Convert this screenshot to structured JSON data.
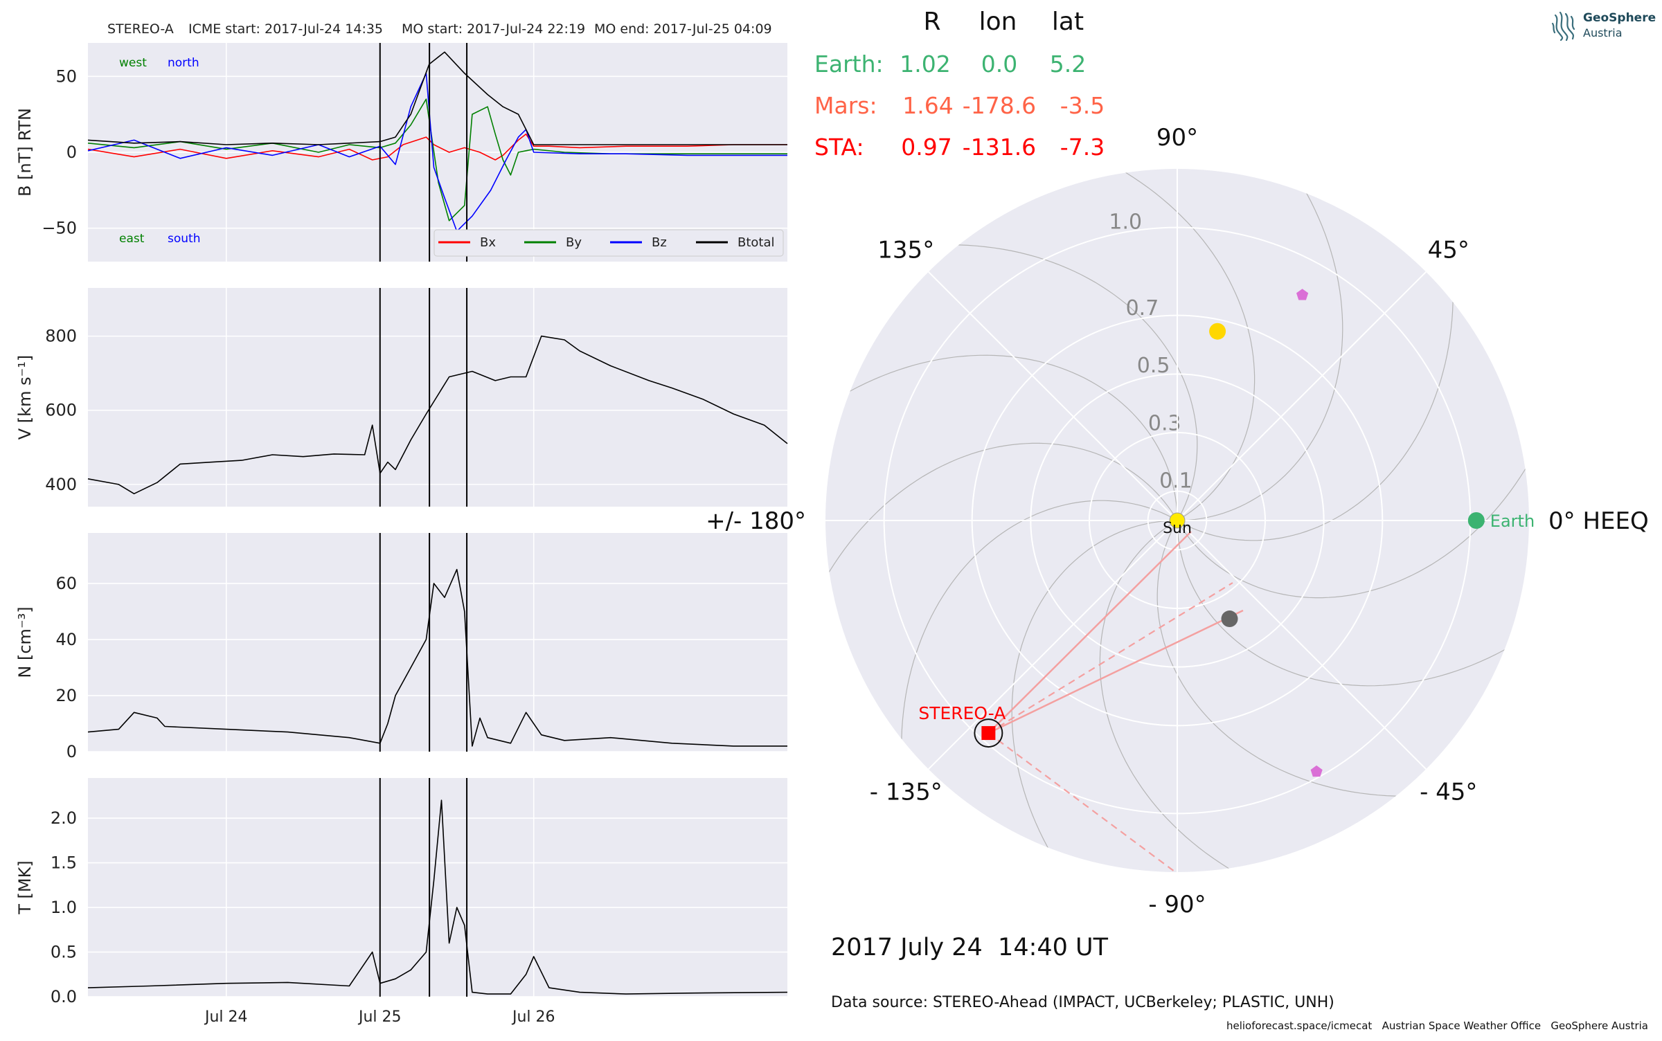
{
  "header": {
    "spacecraft": "STEREO-A",
    "icme_start": "ICME start: 2017-Jul-24 14:35",
    "mo_start": "MO start: 2017-Jul-24 22:19",
    "mo_end": "MO end: 2017-Jul-25 04:09"
  },
  "logo": {
    "name_line1": "GeoSphere",
    "name_line2": "Austria"
  },
  "table": {
    "headers": [
      "R",
      "lon",
      "lat"
    ],
    "rows": [
      {
        "label": "Earth:",
        "R": "1.02",
        "lon": "0.0",
        "lat": "5.2",
        "color": "#3cb371"
      },
      {
        "label": "Mars:",
        "R": "1.64",
        "lon": "-178.6",
        "lat": "-3.5",
        "color": "#ff6347"
      },
      {
        "label": "STA:",
        "R": "0.97",
        "lon": "-131.6",
        "lat": "-7.3",
        "color": "#ff0000"
      }
    ]
  },
  "date_label": "2017 July 24  14:40 UT",
  "data_source": "Data source: STEREO-Ahead (IMPACT, UCBerkeley; PLASTIC, UNH)",
  "footer": "helioforecast.space/icmecat   Austrian Space Weather Office   GeoSphere Austria",
  "chart_data": [
    {
      "type": "line",
      "panel": "magnetic-field",
      "ylabel": "B [nT] RTN",
      "ylim": [
        -72,
        72
      ],
      "yticks": [
        50,
        0,
        -50
      ],
      "ytick_labels": [
        "50",
        "0",
        "−50"
      ],
      "x_range_days": [
        -1.9,
        2.65
      ],
      "xticks": [
        "Jul 24",
        "Jul 25",
        "Jul 26"
      ],
      "annotations": {
        "west": "west",
        "north": "north",
        "east": "east",
        "south": "south"
      },
      "legend": "lower-right",
      "series": [
        {
          "name": "Bx",
          "color": "#ff0000",
          "points": [
            [
              -1.9,
              2
            ],
            [
              -1.6,
              -3
            ],
            [
              -1.3,
              2
            ],
            [
              -1.0,
              -4
            ],
            [
              -0.7,
              1
            ],
            [
              -0.4,
              -3
            ],
            [
              -0.2,
              2
            ],
            [
              -0.05,
              -5
            ],
            [
              0.05,
              -3
            ],
            [
              0.15,
              5
            ],
            [
              0.3,
              10
            ],
            [
              0.35,
              5
            ],
            [
              0.45,
              0
            ],
            [
              0.55,
              3
            ],
            [
              0.65,
              0
            ],
            [
              0.75,
              -5
            ],
            [
              0.8,
              -2
            ],
            [
              0.9,
              8
            ],
            [
              0.95,
              12
            ],
            [
              1.0,
              4
            ],
            [
              1.1,
              4
            ],
            [
              1.3,
              3
            ],
            [
              1.6,
              4
            ],
            [
              2.0,
              4
            ],
            [
              2.3,
              5
            ],
            [
              2.65,
              5
            ]
          ]
        },
        {
          "name": "By",
          "color": "#008000",
          "points": [
            [
              -1.9,
              6
            ],
            [
              -1.6,
              3
            ],
            [
              -1.3,
              7
            ],
            [
              -1.0,
              2
            ],
            [
              -0.7,
              6
            ],
            [
              -0.4,
              0
            ],
            [
              -0.2,
              5
            ],
            [
              0.0,
              3
            ],
            [
              0.1,
              6
            ],
            [
              0.2,
              18
            ],
            [
              0.3,
              35
            ],
            [
              0.38,
              -20
            ],
            [
              0.45,
              -45
            ],
            [
              0.55,
              -35
            ],
            [
              0.6,
              25
            ],
            [
              0.7,
              30
            ],
            [
              0.75,
              12
            ],
            [
              0.8,
              -5
            ],
            [
              0.85,
              -15
            ],
            [
              0.9,
              0
            ],
            [
              1.0,
              2
            ],
            [
              1.2,
              0
            ],
            [
              1.5,
              -1
            ],
            [
              1.9,
              -1
            ],
            [
              2.3,
              -1
            ],
            [
              2.65,
              -1
            ]
          ]
        },
        {
          "name": "Bz",
          "color": "#0000ff",
          "points": [
            [
              -1.9,
              1
            ],
            [
              -1.6,
              8
            ],
            [
              -1.3,
              -4
            ],
            [
              -1.0,
              3
            ],
            [
              -0.7,
              -2
            ],
            [
              -0.4,
              5
            ],
            [
              -0.2,
              -3
            ],
            [
              0.0,
              4
            ],
            [
              0.1,
              -8
            ],
            [
              0.2,
              30
            ],
            [
              0.3,
              52
            ],
            [
              0.35,
              -10
            ],
            [
              0.42,
              -30
            ],
            [
              0.5,
              -52
            ],
            [
              0.6,
              -42
            ],
            [
              0.72,
              -25
            ],
            [
              0.82,
              -5
            ],
            [
              0.9,
              10
            ],
            [
              0.95,
              15
            ],
            [
              1.0,
              0
            ],
            [
              1.3,
              -1
            ],
            [
              1.6,
              -1
            ],
            [
              2.0,
              -2
            ],
            [
              2.65,
              -2
            ]
          ]
        },
        {
          "name": "Btotal",
          "color": "#000000",
          "points": [
            [
              -1.9,
              8
            ],
            [
              -1.6,
              6
            ],
            [
              -1.3,
              7
            ],
            [
              -1.0,
              5
            ],
            [
              -0.7,
              6
            ],
            [
              -0.4,
              5
            ],
            [
              -0.2,
              6
            ],
            [
              0.0,
              7
            ],
            [
              0.1,
              10
            ],
            [
              0.2,
              25
            ],
            [
              0.32,
              58
            ],
            [
              0.42,
              66
            ],
            [
              0.55,
              52
            ],
            [
              0.7,
              38
            ],
            [
              0.8,
              30
            ],
            [
              0.9,
              25
            ],
            [
              1.0,
              5
            ],
            [
              1.3,
              5
            ],
            [
              1.6,
              5
            ],
            [
              2.0,
              5
            ],
            [
              2.65,
              5
            ]
          ]
        }
      ]
    },
    {
      "type": "line",
      "panel": "speed",
      "ylabel": "V [km s⁻¹]",
      "ylim": [
        340,
        930
      ],
      "yticks": [
        800,
        600,
        400
      ],
      "ytick_labels": [
        "800",
        "600",
        "400"
      ],
      "x_range_days": [
        -1.9,
        2.65
      ],
      "xticks": [
        "Jul 24",
        "Jul 25",
        "Jul 26"
      ],
      "series": [
        {
          "name": "",
          "color": "#000000",
          "points": [
            [
              -1.9,
              415
            ],
            [
              -1.7,
              400
            ],
            [
              -1.6,
              375
            ],
            [
              -1.45,
              405
            ],
            [
              -1.3,
              455
            ],
            [
              -1.1,
              460
            ],
            [
              -0.9,
              465
            ],
            [
              -0.7,
              480
            ],
            [
              -0.5,
              475
            ],
            [
              -0.3,
              482
            ],
            [
              -0.1,
              480
            ],
            [
              -0.05,
              560
            ],
            [
              0.0,
              430
            ],
            [
              0.05,
              460
            ],
            [
              0.1,
              440
            ],
            [
              0.2,
              520
            ],
            [
              0.3,
              590
            ],
            [
              0.45,
              690
            ],
            [
              0.6,
              705
            ],
            [
              0.75,
              680
            ],
            [
              0.85,
              690
            ],
            [
              0.95,
              690
            ],
            [
              1.05,
              800
            ],
            [
              1.2,
              790
            ],
            [
              1.3,
              760
            ],
            [
              1.5,
              720
            ],
            [
              1.75,
              680
            ],
            [
              1.9,
              660
            ],
            [
              2.1,
              630
            ],
            [
              2.3,
              590
            ],
            [
              2.5,
              560
            ],
            [
              2.65,
              510
            ]
          ]
        }
      ]
    },
    {
      "type": "line",
      "panel": "density",
      "ylabel": "N [cm⁻³]",
      "ylim": [
        0,
        78
      ],
      "yticks": [
        60,
        40,
        20,
        0
      ],
      "ytick_labels": [
        "60",
        "40",
        "20",
        "0"
      ],
      "x_range_days": [
        -1.9,
        2.65
      ],
      "xticks": [
        "Jul 24",
        "Jul 25",
        "Jul 26"
      ],
      "series": [
        {
          "name": "",
          "color": "#000000",
          "points": [
            [
              -1.9,
              7
            ],
            [
              -1.7,
              8
            ],
            [
              -1.6,
              14
            ],
            [
              -1.45,
              12
            ],
            [
              -1.4,
              9
            ],
            [
              -1.0,
              8
            ],
            [
              -0.6,
              7
            ],
            [
              -0.2,
              5
            ],
            [
              0.0,
              3
            ],
            [
              0.05,
              10
            ],
            [
              0.1,
              20
            ],
            [
              0.2,
              30
            ],
            [
              0.3,
              40
            ],
            [
              0.35,
              60
            ],
            [
              0.42,
              55
            ],
            [
              0.5,
              65
            ],
            [
              0.55,
              50
            ],
            [
              0.6,
              2
            ],
            [
              0.65,
              12
            ],
            [
              0.7,
              5
            ],
            [
              0.85,
              3
            ],
            [
              0.95,
              14
            ],
            [
              1.05,
              6
            ],
            [
              1.2,
              4
            ],
            [
              1.5,
              5
            ],
            [
              1.9,
              3
            ],
            [
              2.3,
              2
            ],
            [
              2.65,
              2
            ]
          ]
        }
      ]
    },
    {
      "type": "line",
      "panel": "temperature",
      "ylabel": "T [MK]",
      "ylim": [
        0,
        2.45
      ],
      "yticks": [
        2.0,
        1.5,
        1.0,
        0.5,
        0.0
      ],
      "ytick_labels": [
        "2.0",
        "1.5",
        "1.0",
        "0.5",
        "0.0"
      ],
      "x_range_days": [
        -1.9,
        2.65
      ],
      "xticks": [
        "Jul 24",
        "Jul 25",
        "Jul 26"
      ],
      "series": [
        {
          "name": "",
          "color": "#000000",
          "points": [
            [
              -1.9,
              0.1
            ],
            [
              -1.5,
              0.12
            ],
            [
              -1.0,
              0.15
            ],
            [
              -0.6,
              0.16
            ],
            [
              -0.2,
              0.12
            ],
            [
              -0.05,
              0.5
            ],
            [
              0.0,
              0.15
            ],
            [
              0.1,
              0.2
            ],
            [
              0.2,
              0.3
            ],
            [
              0.3,
              0.5
            ],
            [
              0.35,
              1.3
            ],
            [
              0.4,
              2.2
            ],
            [
              0.45,
              0.6
            ],
            [
              0.5,
              1.0
            ],
            [
              0.55,
              0.8
            ],
            [
              0.6,
              0.05
            ],
            [
              0.7,
              0.03
            ],
            [
              0.85,
              0.03
            ],
            [
              0.95,
              0.25
            ],
            [
              1.0,
              0.45
            ],
            [
              1.1,
              0.1
            ],
            [
              1.3,
              0.05
            ],
            [
              1.6,
              0.03
            ],
            [
              2.0,
              0.04
            ],
            [
              2.65,
              0.05
            ]
          ]
        }
      ]
    },
    {
      "type": "scatter",
      "panel": "polar-heeq",
      "projection": "polar",
      "radial_tick_labels": [
        "0.1",
        "0.3",
        "0.5",
        "0.7",
        "1.0"
      ],
      "radial_ticks": [
        0.1,
        0.3,
        0.5,
        0.7,
        1.0
      ],
      "r_max": 1.2,
      "angle_labels": [
        "0° HEEQ",
        "45°",
        "90°",
        "135°",
        "+/- 180°",
        "- 135°",
        "- 90°",
        "- 45°"
      ],
      "bodies": [
        {
          "name": "Sun",
          "r": 0.0,
          "lon": 0,
          "color": "#ffea00"
        },
        {
          "name": "Earth",
          "r": 1.02,
          "lon": 0.0,
          "color": "#3cb371"
        },
        {
          "name": "STEREO-A",
          "r": 0.97,
          "lon": -131.6,
          "color": "#ff0000"
        },
        {
          "name": "",
          "r": 0.66,
          "lon": 78,
          "color": "#ffd700"
        },
        {
          "name": "",
          "r": 0.38,
          "lon": -62,
          "color": "#666666"
        },
        {
          "name": "",
          "r": 0.88,
          "lon": 61,
          "color": "#da70d6"
        },
        {
          "name": "",
          "r": 0.98,
          "lon": -61,
          "color": "#da70d6"
        }
      ]
    }
  ]
}
